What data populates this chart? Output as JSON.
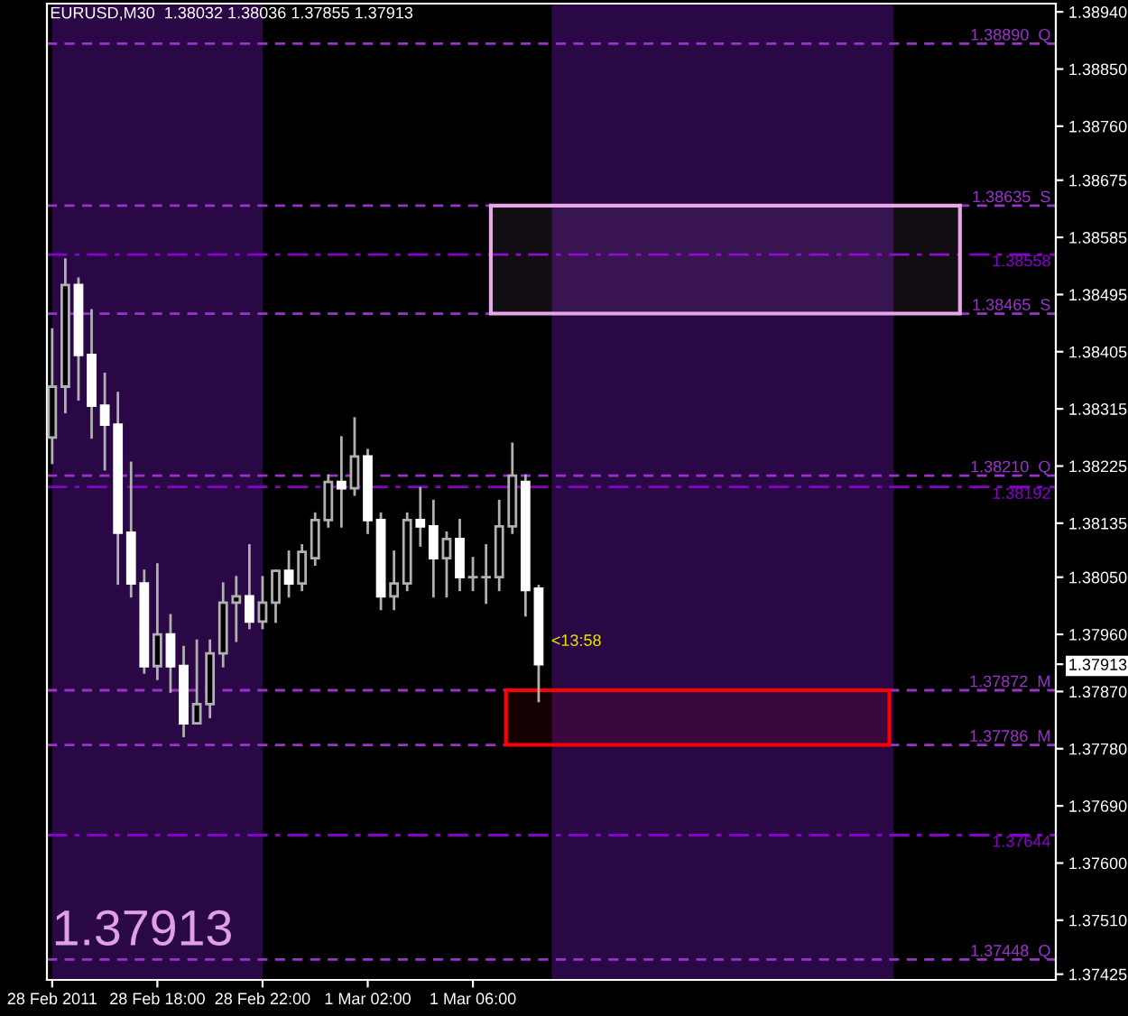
{
  "chart_data": {
    "type": "candlestick",
    "title": "EURUSD,M30  1.38032 1.38036 1.37855 1.37913",
    "colors": [
      "#000000",
      "#000000",
      "#ffffff",
      "#ffffff",
      "#ffffff",
      "#ffffff",
      "#ffffff",
      "#ffffff",
      "#000000",
      "#ffffff",
      "#ffffff",
      "#000000",
      "#000000",
      "#000000",
      "#000000",
      "#ffffff",
      "#000000",
      "#000000",
      "#ffffff",
      "#000000",
      "#000000",
      "#000000",
      "#ffffff",
      "#000000",
      "#ffffff",
      "#ffffff",
      "#000000",
      "#000000",
      "#ffffff",
      "#ffffff",
      "#000000",
      "#ffffff",
      "#000000",
      "#000000",
      "#000000",
      "#000000",
      "#ffffff",
      "#ffffff"
    ],
    "x": [
      "2011-02-28T14:00",
      "2011-02-28T14:30",
      "2011-02-28T15:00",
      "2011-02-28T15:30",
      "2011-02-28T16:00",
      "2011-02-28T16:30",
      "2011-02-28T17:00",
      "2011-02-28T17:30",
      "2011-02-28T18:00",
      "2011-02-28T18:30",
      "2011-02-28T19:00",
      "2011-02-28T19:30",
      "2011-02-28T20:00",
      "2011-02-28T20:30",
      "2011-02-28T21:00",
      "2011-02-28T21:30",
      "2011-02-28T22:00",
      "2011-02-28T22:30",
      "2011-02-28T23:00",
      "2011-02-28T23:30",
      "2011-03-01T00:00",
      "2011-03-01T00:30",
      "2011-03-01T01:00",
      "2011-03-01T01:30",
      "2011-03-01T02:00",
      "2011-03-01T02:30",
      "2011-03-01T03:00",
      "2011-03-01T03:30",
      "2011-03-01T04:00",
      "2011-03-01T04:30",
      "2011-03-01T05:00",
      "2011-03-01T05:30",
      "2011-03-01T06:00",
      "2011-03-01T06:30",
      "2011-03-01T07:00",
      "2011-03-01T07:30",
      "2011-03-01T08:00",
      "2011-03-01T08:30"
    ],
    "ohlc": [
      [
        1.3827,
        1.3844,
        1.3823,
        1.3835
      ],
      [
        1.3835,
        1.3855,
        1.3831,
        1.3851
      ],
      [
        1.3851,
        1.3852,
        1.3833,
        1.384
      ],
      [
        1.384,
        1.3847,
        1.3827,
        1.3832
      ],
      [
        1.3832,
        1.3837,
        1.3822,
        1.3829
      ],
      [
        1.3829,
        1.3834,
        1.3804,
        1.3812
      ],
      [
        1.3812,
        1.3823,
        1.3802,
        1.3804
      ],
      [
        1.3804,
        1.3806,
        1.379,
        1.3791
      ],
      [
        1.3791,
        1.3807,
        1.3789,
        1.3796
      ],
      [
        1.3796,
        1.3799,
        1.3787,
        1.3791
      ],
      [
        1.3791,
        1.3794,
        1.378,
        1.3782
      ],
      [
        1.3782,
        1.3795,
        1.3782,
        1.3785
      ],
      [
        1.3785,
        1.3795,
        1.3783,
        1.3793
      ],
      [
        1.3793,
        1.3804,
        1.3791,
        1.3801
      ],
      [
        1.3801,
        1.3805,
        1.3795,
        1.3802
      ],
      [
        1.3802,
        1.381,
        1.3797,
        1.3798
      ],
      [
        1.3798,
        1.3805,
        1.3797,
        1.3801
      ],
      [
        1.3801,
        1.3806,
        1.3798,
        1.3806
      ],
      [
        1.3806,
        1.3809,
        1.3802,
        1.3804
      ],
      [
        1.3804,
        1.381,
        1.3803,
        1.3809
      ],
      [
        1.3808,
        1.3815,
        1.3807,
        1.3814
      ],
      [
        1.3814,
        1.3821,
        1.3813,
        1.382
      ],
      [
        1.382,
        1.3827,
        1.3813,
        1.3819
      ],
      [
        1.3819,
        1.383,
        1.3818,
        1.3824
      ],
      [
        1.3824,
        1.3825,
        1.3812,
        1.3814
      ],
      [
        1.3814,
        1.3815,
        1.38,
        1.3802
      ],
      [
        1.3802,
        1.3809,
        1.38,
        1.3804
      ],
      [
        1.3804,
        1.3815,
        1.3803,
        1.3814
      ],
      [
        1.3814,
        1.3819,
        1.381,
        1.3813
      ],
      [
        1.3813,
        1.3817,
        1.3802,
        1.3808
      ],
      [
        1.3808,
        1.3812,
        1.3802,
        1.3811
      ],
      [
        1.3811,
        1.3814,
        1.3803,
        1.3805
      ],
      [
        1.3805,
        1.3808,
        1.3803,
        1.3805
      ],
      [
        1.3805,
        1.381,
        1.3801,
        1.3805
      ],
      [
        1.3805,
        1.3817,
        1.3803,
        1.3813
      ],
      [
        1.3813,
        1.3826,
        1.3812,
        1.3821
      ],
      [
        1.382,
        1.3821,
        1.3799,
        1.3803
      ],
      [
        1.38032,
        1.38036,
        1.37855,
        1.37913
      ]
    ],
    "xlim": [
      "2011-02-28T13:48",
      "2011-03-02T04:10"
    ],
    "xticks": [
      {
        "value": "2011-02-28T14:00",
        "label": "28 Feb 2011"
      },
      {
        "value": "2011-02-28T18:00",
        "label": "28 Feb 18:00"
      },
      {
        "value": "2011-02-28T22:00",
        "label": "28 Feb 22:00"
      },
      {
        "value": "2011-03-01T02:00",
        "label": "1 Mar 02:00"
      },
      {
        "value": "2011-03-01T06:00",
        "label": "1 Mar 06:00"
      }
    ],
    "ylim": [
      1.37416,
      1.38953
    ],
    "yticks": [
      {
        "value": 1.3894,
        "label": "1.38940"
      },
      {
        "value": 1.3885,
        "label": "1.38850"
      },
      {
        "value": 1.3876,
        "label": "1.38760"
      },
      {
        "value": 1.38675,
        "label": "1.38675"
      },
      {
        "value": 1.38585,
        "label": "1.38585"
      },
      {
        "value": 1.38495,
        "label": "1.38495"
      },
      {
        "value": 1.38405,
        "label": "1.38405"
      },
      {
        "value": 1.38315,
        "label": "1.38315"
      },
      {
        "value": 1.38225,
        "label": "1.38225"
      },
      {
        "value": 1.38135,
        "label": "1.38135"
      },
      {
        "value": 1.3805,
        "label": "1.38050"
      },
      {
        "value": 1.3796,
        "label": "1.37960"
      },
      {
        "value": 1.37913,
        "label": "1.37913"
      },
      {
        "value": 1.3787,
        "label": "1.37870"
      },
      {
        "value": 1.3778,
        "label": "1.37780"
      },
      {
        "value": 1.3769,
        "label": "1.37690"
      },
      {
        "value": 1.376,
        "label": "1.37600"
      },
      {
        "value": 1.3751,
        "label": "1.37510"
      },
      {
        "value": 1.37425,
        "label": "1.37425"
      }
    ],
    "ref_lines": [
      {
        "axis": "y",
        "value": 1.3889,
        "label": "1.38890  Q",
        "color": "#9933cc",
        "line_style": "dashed"
      },
      {
        "axis": "y",
        "value": 1.38635,
        "label": "1.38635  S",
        "color": "#9933cc",
        "line_style": "dashed"
      },
      {
        "axis": "y",
        "value": 1.38558,
        "label": "1.38558",
        "color": "#8800cc",
        "line_style": "dashdot"
      },
      {
        "axis": "y",
        "value": 1.38465,
        "label": "1.38465  S",
        "color": "#9933cc",
        "line_style": "dashed"
      },
      {
        "axis": "y",
        "value": 1.3821,
        "label": "1.38210  Q",
        "color": "#9933cc",
        "line_style": "dashed"
      },
      {
        "axis": "y",
        "value": 1.38192,
        "label": "1.38192",
        "color": "#8800cc",
        "line_style": "dashdot"
      },
      {
        "axis": "y",
        "value": 1.37872,
        "label": "1.37872  M",
        "color": "#9933cc",
        "line_style": "dashed"
      },
      {
        "axis": "y",
        "value": 1.37786,
        "label": "1.37786  M",
        "color": "#9933cc",
        "line_style": "dashed"
      },
      {
        "axis": "y",
        "value": 1.37644,
        "label": "1.37644",
        "color": "#8800cc",
        "line_style": "dashdot"
      },
      {
        "axis": "y",
        "value": 1.37448,
        "label": "1.37448  Q",
        "color": "#9933cc",
        "line_style": "dashed"
      }
    ],
    "bands": [
      {
        "axis": "x",
        "from": "2011-02-28T14:00",
        "to": "2011-02-28T22:00",
        "color": "#2a0845"
      },
      {
        "axis": "x",
        "from": "2011-03-01T09:00",
        "to": "2011-03-01T22:00",
        "color": "#2a0845"
      },
      {
        "axis": "y",
        "from": 1.38465,
        "to": 1.38635,
        "color": "#e8a8e8"
      },
      {
        "axis": "y",
        "from": 1.37786,
        "to": 1.37872,
        "color": "#ff0000"
      }
    ],
    "annotations": [
      "1.37913",
      "<13:58"
    ],
    "grid": false,
    "legend": false
  }
}
